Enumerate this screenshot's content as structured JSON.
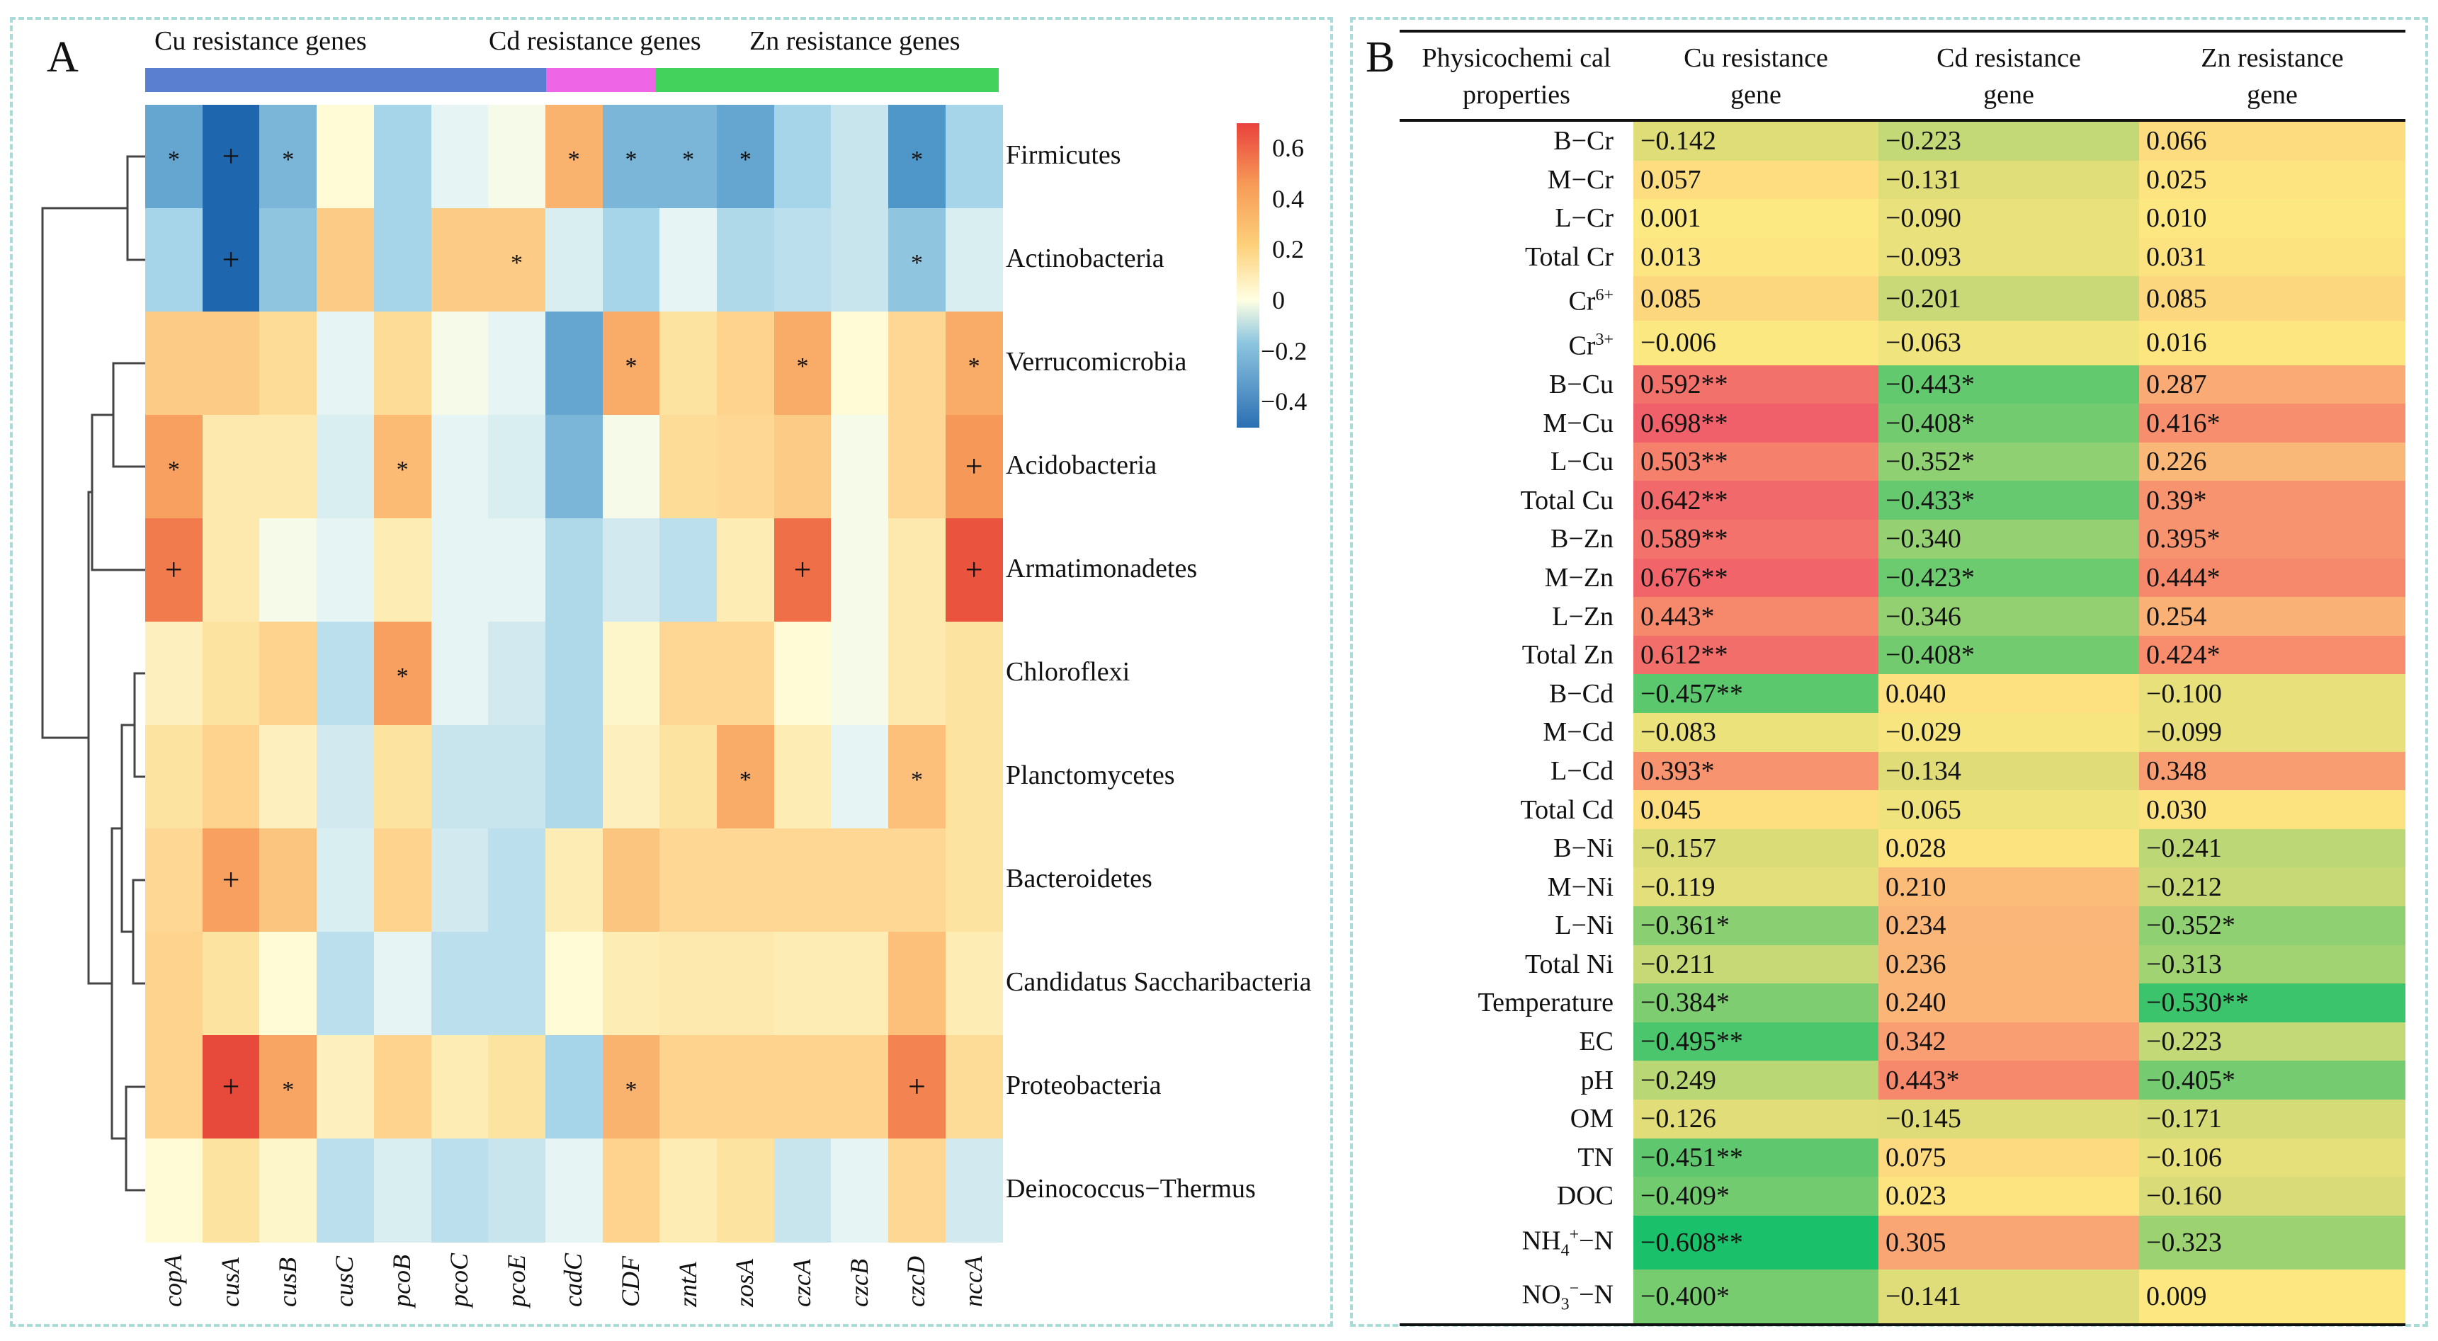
{
  "panel_a": {
    "letter": "A",
    "groups": [
      {
        "label": "Cu resistance genes",
        "color": "#5b7fd0"
      },
      {
        "label": "Cd resistance genes",
        "color": "#ee66e6"
      },
      {
        "label": "Zn resistance genes",
        "color": "#43d35c"
      }
    ],
    "colorbar_ticks": [
      "0.6",
      "0.4",
      "0.2",
      "0",
      "−0.2",
      "−0.4"
    ]
  },
  "chart_data": {
    "type": "heatmap",
    "x": [
      "copA",
      "cusA",
      "cusB",
      "cusC",
      "pcoB",
      "pcoC",
      "pcoE",
      "cadC",
      "CDF",
      "zntA",
      "zosA",
      "czcA",
      "czcB",
      "czcD",
      "nccA"
    ],
    "gene_groups": [
      {
        "name": "Cu resistance genes",
        "genes": [
          "copA",
          "cusA",
          "cusB",
          "cusC",
          "pcoB",
          "pcoC",
          "pcoE"
        ]
      },
      {
        "name": "Cd resistance genes",
        "genes": [
          "cadC"
        ]
      },
      {
        "name": "Zn resistance genes",
        "genes": [
          "CDF",
          "zntA",
          "zosA",
          "czcA",
          "czcB",
          "czcD",
          "nccA"
        ]
      }
    ],
    "y": [
      "Firmicutes",
      "Actinobacteria",
      "Verrucomicrobia",
      "Acidobacteria",
      "Armatimonadetes",
      "Chloroflexi",
      "Planctomycetes",
      "Bacteroidetes",
      "Candidatus Saccharibacteria",
      "Proteobacteria",
      "Deinococcus−Thermus"
    ],
    "values": [
      [
        -0.35,
        -0.55,
        -0.3,
        0.02,
        -0.2,
        -0.05,
        -0.02,
        0.35,
        -0.3,
        -0.3,
        -0.35,
        -0.2,
        -0.12,
        -0.4,
        -0.2
      ],
      [
        -0.2,
        -0.55,
        -0.25,
        0.25,
        -0.2,
        0.25,
        0.25,
        -0.08,
        -0.2,
        -0.05,
        -0.18,
        -0.15,
        -0.12,
        -0.25,
        -0.08
      ],
      [
        0.25,
        0.25,
        0.18,
        -0.05,
        0.18,
        -0.02,
        -0.05,
        -0.35,
        0.38,
        0.15,
        0.22,
        0.38,
        0.02,
        0.2,
        0.38
      ],
      [
        0.42,
        0.12,
        0.12,
        -0.08,
        0.32,
        -0.05,
        -0.08,
        -0.3,
        -0.02,
        0.18,
        0.2,
        0.25,
        -0.02,
        0.2,
        0.45
      ],
      [
        0.52,
        0.12,
        -0.02,
        -0.05,
        0.1,
        -0.05,
        -0.05,
        -0.18,
        -0.1,
        -0.15,
        0.1,
        0.55,
        -0.02,
        0.12,
        0.62
      ],
      [
        0.08,
        0.15,
        0.22,
        -0.15,
        0.42,
        -0.05,
        -0.1,
        -0.18,
        0.05,
        0.2,
        0.2,
        0.02,
        -0.02,
        0.12,
        0.15
      ],
      [
        0.15,
        0.22,
        0.08,
        -0.1,
        0.15,
        -0.12,
        -0.12,
        -0.18,
        0.08,
        0.15,
        0.38,
        0.1,
        -0.05,
        0.3,
        0.15
      ],
      [
        0.2,
        0.42,
        0.28,
        -0.08,
        0.22,
        -0.1,
        -0.15,
        0.1,
        0.28,
        0.2,
        0.2,
        0.2,
        0.2,
        0.2,
        0.15
      ],
      [
        0.22,
        0.15,
        0.02,
        -0.15,
        -0.05,
        -0.15,
        -0.15,
        0.02,
        0.1,
        0.12,
        0.12,
        0.1,
        0.1,
        0.3,
        0.1
      ],
      [
        0.22,
        0.65,
        0.4,
        0.08,
        0.22,
        0.1,
        0.15,
        -0.2,
        0.35,
        0.22,
        0.22,
        0.22,
        0.22,
        0.5,
        0.18
      ],
      [
        0.02,
        0.15,
        0.05,
        -0.15,
        -0.08,
        -0.15,
        -0.12,
        -0.05,
        0.22,
        0.1,
        0.15,
        -0.12,
        -0.05,
        0.2,
        -0.1
      ]
    ],
    "significance": [
      [
        "*",
        "+",
        "*",
        "",
        "",
        "",
        "",
        "*",
        "*",
        "*",
        "*",
        "",
        "",
        "*",
        ""
      ],
      [
        "",
        "+",
        "",
        "",
        "",
        "",
        "*",
        "",
        "",
        "",
        "",
        "",
        "",
        "*",
        ""
      ],
      [
        "",
        "",
        "",
        "",
        "",
        "",
        "",
        "",
        "*",
        "",
        "",
        "*",
        "",
        "",
        "*"
      ],
      [
        "*",
        "",
        "",
        "",
        "*",
        "",
        "",
        "",
        "",
        "",
        "",
        "",
        "",
        "",
        "+"
      ],
      [
        "+",
        "",
        "",
        "",
        "",
        "",
        "",
        "",
        "",
        "",
        "",
        "+",
        "",
        "",
        "+"
      ],
      [
        "",
        "",
        "",
        "",
        "*",
        "",
        "",
        "",
        "",
        "",
        "",
        "",
        "",
        "",
        ""
      ],
      [
        "",
        "",
        "",
        "",
        "",
        "",
        "",
        "",
        "",
        "",
        "*",
        "",
        "",
        "*",
        ""
      ],
      [
        "",
        "+",
        "",
        "",
        "",
        "",
        "",
        "",
        "",
        "",
        "",
        "",
        "",
        "",
        ""
      ],
      [
        "",
        "",
        "",
        "",
        "",
        "",
        "",
        "",
        "",
        "",
        "",
        "",
        "",
        "",
        ""
      ],
      [
        "",
        "+",
        "*",
        "",
        "",
        "",
        "",
        "",
        "*",
        "",
        "",
        "",
        "",
        "+",
        ""
      ],
      [
        "",
        "",
        "",
        "",
        "",
        "",
        "",
        "",
        "",
        "",
        "",
        "",
        "",
        "",
        ""
      ]
    ],
    "color_range": [
      -0.5,
      0.7
    ],
    "colorbar_ticks": [
      0.6,
      0.4,
      0.2,
      0,
      -0.2,
      -0.4
    ]
  },
  "table_b": {
    "letter": "B",
    "headers": [
      "Physicochemi cal properties",
      "Cu resistance gene",
      "Cd resistance gene",
      "Zn resistance gene"
    ],
    "rows": [
      {
        "prop": "B−Cr",
        "vals": [
          "−0.142",
          "−0.223",
          "0.066"
        ]
      },
      {
        "prop": "M−Cr",
        "vals": [
          "0.057",
          "−0.131",
          "0.025"
        ]
      },
      {
        "prop": "L−Cr",
        "vals": [
          "0.001",
          "−0.090",
          "0.010"
        ]
      },
      {
        "prop": "Total Cr",
        "vals": [
          "0.013",
          "−0.093",
          "0.031"
        ]
      },
      {
        "prop": "Cr6+",
        "vals": [
          "0.085",
          "−0.201",
          "0.085"
        ]
      },
      {
        "prop": "Cr3+",
        "vals": [
          "−0.006",
          "−0.063",
          "0.016"
        ]
      },
      {
        "prop": "B−Cu",
        "vals": [
          "0.592**",
          "−0.443*",
          "0.287"
        ]
      },
      {
        "prop": "M−Cu",
        "vals": [
          "0.698**",
          "−0.408*",
          "0.416*"
        ]
      },
      {
        "prop": "L−Cu",
        "vals": [
          "0.503**",
          "−0.352*",
          "0.226"
        ]
      },
      {
        "prop": "Total Cu",
        "vals": [
          "0.642**",
          "−0.433*",
          "0.39*"
        ]
      },
      {
        "prop": "B−Zn",
        "vals": [
          "0.589**",
          "−0.340",
          "0.395*"
        ]
      },
      {
        "prop": "M−Zn",
        "vals": [
          "0.676**",
          "−0.423*",
          "0.444*"
        ]
      },
      {
        "prop": "L−Zn",
        "vals": [
          "0.443*",
          "−0.346",
          "0.254"
        ]
      },
      {
        "prop": "Total Zn",
        "vals": [
          "0.612**",
          "−0.408*",
          "0.424*"
        ]
      },
      {
        "prop": "B−Cd",
        "vals": [
          "−0.457**",
          "0.040",
          "−0.100"
        ]
      },
      {
        "prop": "M−Cd",
        "vals": [
          "−0.083",
          "−0.029",
          "−0.099"
        ]
      },
      {
        "prop": "L−Cd",
        "vals": [
          "0.393*",
          "−0.134",
          "0.348"
        ]
      },
      {
        "prop": "Total Cd",
        "vals": [
          "0.045",
          "−0.065",
          "0.030"
        ]
      },
      {
        "prop": "B−Ni",
        "vals": [
          "−0.157",
          "0.028",
          "−0.241"
        ]
      },
      {
        "prop": "M−Ni",
        "vals": [
          "−0.119",
          "0.210",
          "−0.212"
        ]
      },
      {
        "prop": "L−Ni",
        "vals": [
          "−0.361*",
          "0.234",
          "−0.352*"
        ]
      },
      {
        "prop": "Total Ni",
        "vals": [
          "−0.211",
          "0.236",
          "−0.313"
        ]
      },
      {
        "prop": "Temperature",
        "vals": [
          "−0.384*",
          "0.240",
          "−0.530**"
        ]
      },
      {
        "prop": "EC",
        "vals": [
          "−0.495**",
          "0.342",
          "−0.223"
        ]
      },
      {
        "prop": "pH",
        "vals": [
          "−0.249",
          "0.443*",
          "−0.405*"
        ]
      },
      {
        "prop": "OM",
        "vals": [
          "−0.126",
          "−0.145",
          "−0.171"
        ]
      },
      {
        "prop": "TN",
        "vals": [
          "−0.451**",
          "0.075",
          "−0.106"
        ]
      },
      {
        "prop": "DOC",
        "vals": [
          "−0.409*",
          "0.023",
          "−0.160"
        ]
      },
      {
        "prop": "NH4+−N",
        "vals": [
          "−0.608**",
          "0.305",
          "−0.323"
        ]
      },
      {
        "prop": "NO3−−N",
        "vals": [
          "−0.400*",
          "−0.141",
          "0.009"
        ]
      }
    ]
  }
}
